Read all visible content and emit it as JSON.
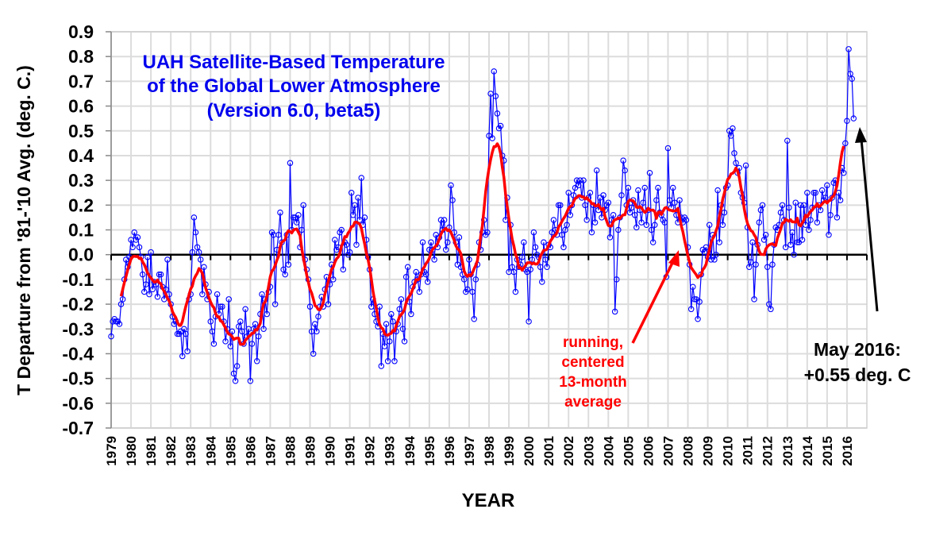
{
  "chart_data": {
    "type": "line",
    "title": [
      "UAH Satellite-Based Temperature",
      "of the Global Lower Atmosphere",
      "(Version 6.0, beta5)"
    ],
    "xlabel": "YEAR",
    "ylabel": "T Departure from '81-'10 Avg. (deg. C.)",
    "ylim": [
      -0.7,
      0.9
    ],
    "xlim": [
      1979,
      2017
    ],
    "grid": true,
    "yticks": [
      "0.9",
      "0.8",
      "0.7",
      "0.6",
      "0.5",
      "0.4",
      "0.3",
      "0.2",
      "0.1",
      "0.0",
      "-0.1",
      "-0.2",
      "-0.3",
      "-0.4",
      "-0.5",
      "-0.6",
      "-0.7"
    ],
    "xticks": [
      "1979",
      "1980",
      "1981",
      "1982",
      "1983",
      "1984",
      "1985",
      "1986",
      "1987",
      "1988",
      "1989",
      "1990",
      "1991",
      "1992",
      "1993",
      "1994",
      "1995",
      "1996",
      "1997",
      "1998",
      "1999",
      "2000",
      "2001",
      "2002",
      "2003",
      "2004",
      "2005",
      "2006",
      "2007",
      "2008",
      "2009",
      "2010",
      "2011",
      "2012",
      "2013",
      "2014",
      "2015",
      "2016"
    ],
    "start": "1979-01",
    "frequency": "monthly",
    "series": [
      {
        "name": "Monthly anomaly",
        "color": "#0000ff",
        "values": [
          -0.33,
          -0.27,
          -0.26,
          -0.27,
          -0.27,
          -0.28,
          -0.2,
          -0.18,
          -0.1,
          -0.02,
          -0.05,
          -0.01,
          0.06,
          0.03,
          0.09,
          0.06,
          0.07,
          0.03,
          -0.01,
          -0.08,
          -0.15,
          -0.12,
          -0.01,
          -0.16,
          0.01,
          -0.14,
          -0.11,
          -0.12,
          -0.17,
          -0.08,
          -0.08,
          -0.13,
          -0.18,
          -0.14,
          -0.02,
          -0.16,
          -0.2,
          -0.25,
          -0.28,
          -0.27,
          -0.32,
          -0.32,
          -0.31,
          -0.41,
          -0.3,
          -0.32,
          -0.39,
          -0.18,
          -0.16,
          0.01,
          0.15,
          0.09,
          0.03,
          0.01,
          -0.02,
          -0.16,
          -0.05,
          -0.12,
          -0.18,
          -0.15,
          -0.27,
          -0.31,
          -0.36,
          -0.25,
          -0.16,
          -0.24,
          -0.21,
          -0.21,
          -0.27,
          -0.35,
          -0.3,
          -0.18,
          -0.37,
          -0.31,
          -0.48,
          -0.51,
          -0.45,
          -0.29,
          -0.27,
          -0.31,
          -0.36,
          -0.22,
          -0.33,
          -0.3,
          -0.51,
          -0.36,
          -0.3,
          -0.28,
          -0.43,
          -0.33,
          -0.24,
          -0.16,
          -0.3,
          -0.18,
          -0.24,
          -0.15,
          -0.13,
          0.09,
          0.08,
          -0.2,
          0.02,
          0.08,
          0.17,
          0.05,
          -0.06,
          -0.08,
          0.08,
          -0.04,
          0.37,
          0.1,
          0.15,
          0.15,
          0.13,
          0.16,
          0.03,
          0.1,
          0.2,
          -0.02,
          -0.06,
          -0.1,
          -0.21,
          -0.31,
          -0.4,
          -0.28,
          -0.31,
          -0.25,
          -0.21,
          -0.17,
          -0.21,
          -0.14,
          -0.09,
          -0.2,
          -0.12,
          -0.04,
          -0.1,
          0.06,
          0.02,
          0.03,
          0.09,
          0.1,
          -0.06,
          0.05,
          0.04,
          0.0,
          0.01,
          0.25,
          0.16,
          0.2,
          0.04,
          0.23,
          0.14,
          0.31,
          0.12,
          0.15,
          0.06,
          -0.01,
          -0.06,
          -0.21,
          -0.18,
          -0.24,
          -0.27,
          -0.29,
          -0.21,
          -0.45,
          -0.32,
          -0.37,
          -0.28,
          -0.43,
          -0.35,
          -0.24,
          -0.27,
          -0.43,
          -0.31,
          -0.28,
          -0.22,
          -0.18,
          -0.3,
          -0.35,
          -0.09,
          -0.05,
          -0.19,
          -0.24,
          -0.13,
          -0.11,
          -0.07,
          -0.1,
          -0.15,
          -0.08,
          0.05,
          -0.07,
          -0.08,
          -0.11,
          0.02,
          0.05,
          0.02,
          -0.02,
          0.08,
          0.03,
          0.07,
          0.14,
          0.1,
          0.14,
          0.02,
          0.05,
          0.11,
          0.28,
          0.22,
          0.09,
          0.05,
          -0.04,
          0.07,
          -0.05,
          -0.08,
          -0.1,
          -0.15,
          -0.14,
          -0.02,
          -0.08,
          -0.15,
          -0.26,
          -0.1,
          -0.04,
          0.05,
          0.02,
          0.09,
          0.14,
          0.08,
          0.09,
          0.48,
          0.65,
          0.47,
          0.74,
          0.64,
          0.57,
          0.51,
          0.52,
          0.4,
          0.38,
          0.14,
          0.23,
          -0.07,
          0.12,
          -0.05,
          -0.07,
          -0.15,
          -0.02,
          -0.05,
          -0.04,
          -0.01,
          0.05,
          -0.06,
          -0.07,
          -0.27,
          -0.06,
          -0.02,
          0.09,
          0.03,
          0.0,
          -0.01,
          -0.05,
          -0.11,
          0.05,
          -0.02,
          -0.05,
          0.04,
          0.03,
          0.09,
          0.14,
          0.1,
          0.08,
          0.2,
          0.2,
          0.08,
          0.03,
          0.1,
          0.12,
          0.25,
          0.16,
          0.2,
          0.24,
          0.27,
          0.3,
          0.28,
          0.3,
          0.23,
          0.3,
          0.2,
          0.14,
          0.23,
          0.25,
          0.09,
          0.2,
          0.13,
          0.34,
          0.18,
          0.23,
          0.15,
          0.24,
          0.18,
          0.2,
          0.21,
          0.07,
          0.14,
          0.16,
          -0.23,
          -0.1,
          0.1,
          0.15,
          0.24,
          0.38,
          0.34,
          0.2,
          0.27,
          0.17,
          0.19,
          0.22,
          0.16,
          0.11,
          0.26,
          0.18,
          0.13,
          0.21,
          0.27,
          0.12,
          0.18,
          0.33,
          0.1,
          0.05,
          0.12,
          0.22,
          0.27,
          0.17,
          0.16,
          0.14,
          0.13,
          -0.09,
          0.43,
          0.22,
          0.19,
          0.27,
          0.21,
          0.16,
          0.13,
          0.22,
          0.15,
          0.13,
          0.15,
          0.14,
          0.03,
          -0.04,
          -0.22,
          -0.13,
          -0.18,
          -0.18,
          -0.26,
          -0.19,
          -0.08,
          0.02,
          0.01,
          0.03,
          -0.01,
          0.12,
          -0.02,
          0.08,
          -0.02,
          0.0,
          0.26,
          0.05,
          0.2,
          0.12,
          0.17,
          0.27,
          0.28,
          0.5,
          0.48,
          0.51,
          0.41,
          0.37,
          0.33,
          0.35,
          0.25,
          0.23,
          0.21,
          0.36,
          0.11,
          -0.05,
          -0.03,
          0.05,
          -0.18,
          -0.04,
          0.04,
          0.13,
          0.18,
          0.2,
          0.06,
          0.08,
          -0.05,
          -0.2,
          -0.22,
          -0.04,
          0.04,
          0.11,
          0.1,
          0.12,
          0.17,
          0.2,
          0.14,
          0.03,
          0.46,
          0.19,
          0.04,
          0.09,
          0.0,
          0.21,
          0.05,
          0.05,
          0.2,
          0.06,
          0.2,
          0.12,
          0.25,
          0.1,
          0.14,
          0.19,
          0.25,
          0.25,
          0.13,
          0.2,
          0.18,
          0.26,
          0.22,
          0.23,
          0.28,
          0.08,
          0.16,
          0.23,
          0.29,
          0.3,
          0.15,
          0.25,
          0.22,
          0.35,
          0.33,
          0.45,
          0.54,
          0.83,
          0.73,
          0.71,
          0.55
        ]
      },
      {
        "name": "running, centered 13-month average",
        "color": "#ff0000",
        "derived_from": "Monthly anomaly",
        "window_months": 13
      }
    ],
    "annotations": {
      "running_mean_label": [
        "running,",
        "centered",
        "13-month",
        "average"
      ],
      "latest_label": [
        "May 2016:",
        "+0.55 deg. C"
      ]
    }
  }
}
